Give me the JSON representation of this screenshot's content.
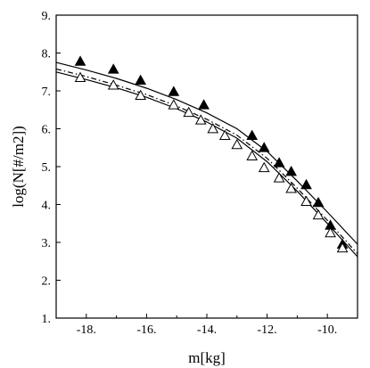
{
  "chart_data": {
    "type": "scatter",
    "title": "",
    "xlabel": "m[kg]",
    "ylabel": "log(N[#/m2])",
    "xlim": [
      -19,
      -9
    ],
    "ylim": [
      1,
      9
    ],
    "x_ticks": [
      -18,
      -16,
      -14,
      -12,
      -10
    ],
    "x_tick_labels": [
      "-18.",
      "-16.",
      "-14.",
      "-12.",
      "-10."
    ],
    "y_ticks": [
      1,
      2,
      3,
      4,
      5,
      6,
      7,
      8,
      9
    ],
    "y_tick_labels": [
      "1.",
      "2.",
      "3.",
      "4.",
      "5.",
      "6.",
      "7.",
      "8.",
      "9."
    ],
    "grid": false,
    "series": [
      {
        "marker": "filled-triangle",
        "color": "#000000",
        "x": [
          -18.2,
          -17.1,
          -16.2,
          -15.1,
          -14.1,
          -12.5,
          -12.1,
          -11.6,
          -11.2,
          -10.7,
          -10.3,
          -9.9,
          -9.5
        ],
        "y": [
          7.78,
          7.57,
          7.28,
          6.98,
          6.63,
          5.82,
          5.5,
          5.1,
          4.87,
          4.52,
          4.05,
          3.45,
          2.95
        ]
      },
      {
        "marker": "open-triangle",
        "color": "#000000",
        "x": [
          -18.2,
          -17.1,
          -16.2,
          -15.1,
          -14.6,
          -14.2,
          -13.8,
          -13.4,
          -13.0,
          -12.5,
          -12.1,
          -11.6,
          -11.2,
          -10.7,
          -10.3,
          -9.9,
          -9.5
        ],
        "y": [
          7.35,
          7.15,
          6.88,
          6.63,
          6.43,
          6.23,
          6.0,
          5.82,
          5.58,
          5.28,
          4.97,
          4.7,
          4.42,
          4.08,
          3.72,
          3.25,
          2.85
        ]
      }
    ],
    "curves": [
      {
        "style": "solid",
        "x": [
          -19,
          -18,
          -17,
          -16,
          -15,
          -14,
          -13,
          -12,
          -11,
          -10,
          -9
        ],
        "y": [
          7.75,
          7.55,
          7.33,
          7.07,
          6.77,
          6.42,
          6.0,
          5.4,
          4.62,
          3.8,
          2.95
        ]
      },
      {
        "style": "solid",
        "x": [
          -19,
          -18,
          -17,
          -16,
          -15,
          -14,
          -13,
          -12,
          -11,
          -10,
          -9
        ],
        "y": [
          7.5,
          7.3,
          7.08,
          6.83,
          6.53,
          6.18,
          5.75,
          5.13,
          4.35,
          3.5,
          2.62
        ]
      },
      {
        "style": "dashdot",
        "x": [
          -19,
          -18,
          -17,
          -16,
          -15,
          -14,
          -13,
          -12,
          -11,
          -10,
          -9
        ],
        "y": [
          7.58,
          7.38,
          7.15,
          6.9,
          6.6,
          6.25,
          5.83,
          5.22,
          4.43,
          3.58,
          2.7
        ]
      }
    ]
  }
}
